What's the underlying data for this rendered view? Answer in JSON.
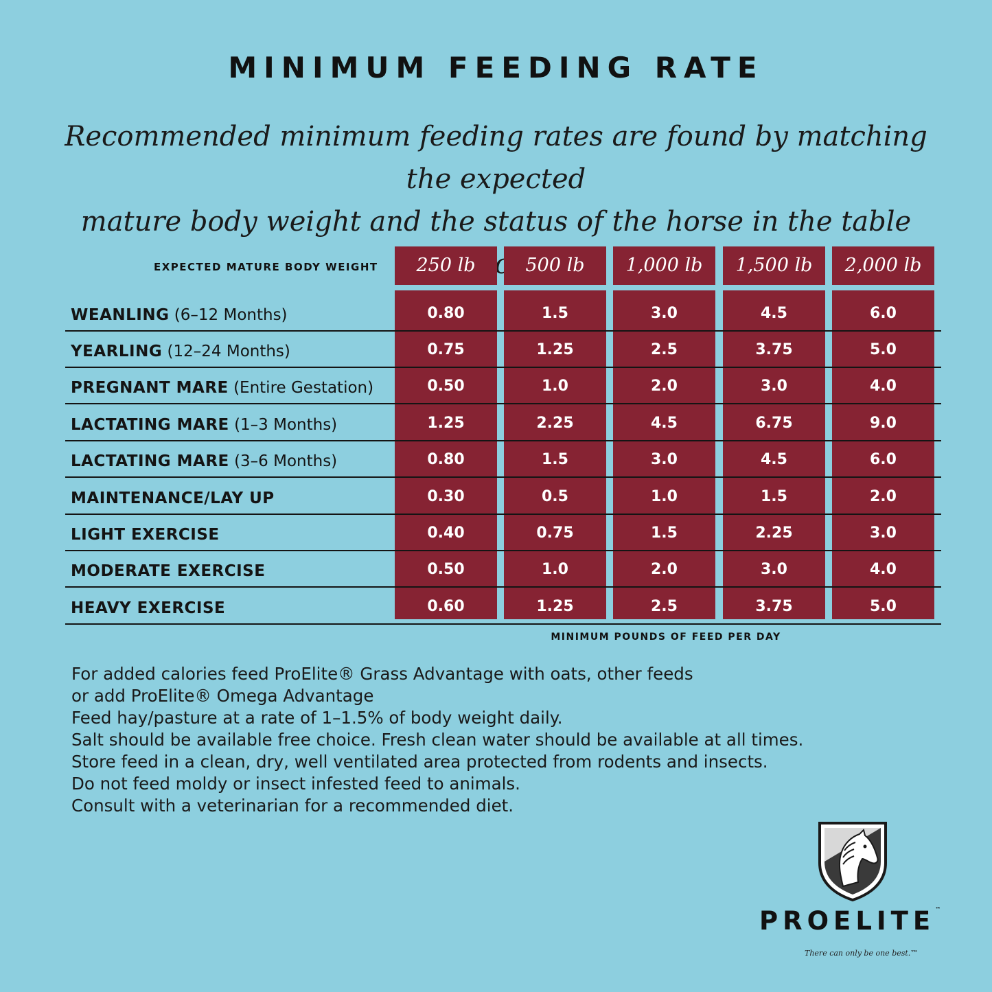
{
  "title": "MINIMUM FEEDING RATE",
  "intro": {
    "line1": "Recommended minimum feeding rates are found by matching the expected",
    "line2": "mature body weight and the status of the horse in the table below."
  },
  "table": {
    "weight_label": "EXPECTED MATURE BODY WEIGHT",
    "columns": [
      "250 lb",
      "500 lb",
      "1,000 lb",
      "1,500 lb",
      "2,000 lb"
    ],
    "rows": [
      {
        "label": "WEANLING",
        "paren": "(6–12 Months)",
        "values": [
          "0.80",
          "1.5",
          "3.0",
          "4.5",
          "6.0"
        ]
      },
      {
        "label": "YEARLING",
        "paren": "(12–24 Months)",
        "values": [
          "0.75",
          "1.25",
          "2.5",
          "3.75",
          "5.0"
        ]
      },
      {
        "label": "PREGNANT MARE",
        "paren": "(Entire Gestation)",
        "values": [
          "0.50",
          "1.0",
          "2.0",
          "3.0",
          "4.0"
        ]
      },
      {
        "label": "LACTATING MARE",
        "paren": "(1–3 Months)",
        "values": [
          "1.25",
          "2.25",
          "4.5",
          "6.75",
          "9.0"
        ]
      },
      {
        "label": "LACTATING MARE",
        "paren": "(3–6 Months)",
        "values": [
          "0.80",
          "1.5",
          "3.0",
          "4.5",
          "6.0"
        ]
      },
      {
        "label": "MAINTENANCE/LAY UP",
        "paren": "",
        "values": [
          "0.30",
          "0.5",
          "1.0",
          "1.5",
          "2.0"
        ]
      },
      {
        "label": "LIGHT EXERCISE",
        "paren": "",
        "values": [
          "0.40",
          "0.75",
          "1.5",
          "2.25",
          "3.0"
        ]
      },
      {
        "label": "MODERATE EXERCISE",
        "paren": "",
        "values": [
          "0.50",
          "1.0",
          "2.0",
          "3.0",
          "4.0"
        ]
      },
      {
        "label": "HEAVY EXERCISE",
        "paren": "",
        "values": [
          "0.60",
          "1.25",
          "2.5",
          "3.75",
          "5.0"
        ]
      }
    ],
    "footnote": "MINIMUM POUNDS OF FEED PER DAY"
  },
  "notes": [
    "For added calories feed ProElite® Grass Advantage with oats, other feeds",
    "or add ProElite® Omega Advantage",
    "Feed hay/pasture at a rate of 1–1.5% of body weight daily.",
    "Salt should be available free choice. Fresh clean water should be available at all times.",
    "Store feed in a clean, dry, well ventilated area protected from rodents and insects.",
    "Do not feed moldy or insect infested feed to animals.",
    "Consult with a veterinarian for a recommended diet."
  ],
  "brand": {
    "name": "PROELITE",
    "trademark": "™",
    "tagline": "There can only be one best.™",
    "logo_icon": "horse-shield-icon"
  },
  "colors": {
    "background": "#8dcfdf",
    "table_accent": "#862333",
    "text": "#141414"
  }
}
